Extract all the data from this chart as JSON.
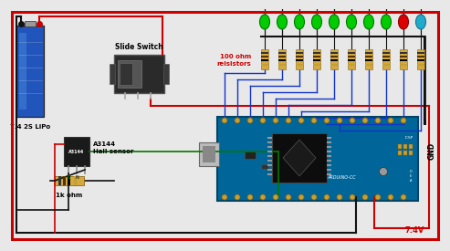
{
  "bg_color": "#e8e8e8",
  "border_color": "#cc0000",
  "battery_color": "#2255bb",
  "battery_label": "7.4 2S LiPo",
  "switch_label": "Slide Switch",
  "hall_chip_label": "A3144",
  "hall_label": "A3144\nHall sensor",
  "resistor_label": "1k ohm",
  "led_label": "100 ohm\nreisistors",
  "voltage_label": "7.4V",
  "gnd_label": "GND",
  "wire_red": "#cc0000",
  "wire_blue": "#1133cc",
  "wire_green": "#007700",
  "wire_black": "#111111",
  "board_color": "#006699",
  "board_dark": "#004466",
  "num_leds": 10,
  "led_colors": [
    "#00cc00",
    "#00cc00",
    "#00cc00",
    "#00cc00",
    "#00cc00",
    "#00cc00",
    "#00cc00",
    "#00cc00",
    "#dd0000",
    "#22aacc"
  ],
  "led_edge_colors": [
    "#007700",
    "#007700",
    "#007700",
    "#007700",
    "#007700",
    "#007700",
    "#007700",
    "#007700",
    "#880000",
    "#117788"
  ]
}
